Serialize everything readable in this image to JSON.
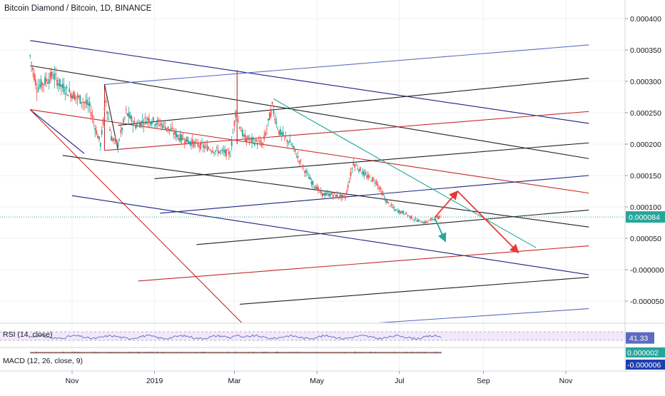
{
  "header": {
    "title": "Bitcoin Diamond / Bitcoin, 1D, BINANCE"
  },
  "chart_data": {
    "type": "candlestick",
    "title": "Bitcoin Diamond / Bitcoin, 1D, BINANCE",
    "x_axis": {
      "ticks": [
        {
          "label": "Nov",
          "date": "2018-11-01"
        },
        {
          "label": "2019",
          "date": "2019-01-01"
        },
        {
          "label": "Mar",
          "date": "2019-03-01"
        },
        {
          "label": "May",
          "date": "2019-05-01"
        },
        {
          "label": "Jul",
          "date": "2019-07-01"
        },
        {
          "label": "Sep",
          "date": "2019-09-01"
        },
        {
          "label": "Nov",
          "date": "2019-11-01"
        }
      ]
    },
    "y_axis": {
      "range": [
        -9e-05,
        0.00041
      ],
      "ticks": [
        {
          "label": "0.000400",
          "value": 0.0004
        },
        {
          "label": "0.000350",
          "value": 0.00035
        },
        {
          "label": "0.000300",
          "value": 0.0003
        },
        {
          "label": "0.000250",
          "value": 0.00025
        },
        {
          "label": "0.000200",
          "value": 0.0002
        },
        {
          "label": "0.000150",
          "value": 0.00015
        },
        {
          "label": "0.000100",
          "value": 0.0001
        },
        {
          "label": "0.000050",
          "value": 5e-05
        },
        {
          "label": "-0.000000",
          "value": 0
        },
        {
          "label": "-0.000050",
          "value": -5e-05
        }
      ]
    },
    "last_price": {
      "label": "0.000084",
      "value": 8.4e-05,
      "color": "#26a69a"
    },
    "price_path": [
      [
        "2018-10-01",
        0.00034
      ],
      [
        "2018-10-06",
        0.00029
      ],
      [
        "2018-10-12",
        0.0003
      ],
      [
        "2018-10-18",
        0.00031
      ],
      [
        "2018-10-25",
        0.00029
      ],
      [
        "2018-11-01",
        0.00028
      ],
      [
        "2018-11-08",
        0.00027
      ],
      [
        "2018-11-14",
        0.00026
      ],
      [
        "2018-11-19",
        0.00022
      ],
      [
        "2018-11-22",
        0.0002
      ],
      [
        "2018-11-26",
        0.00027
      ],
      [
        "2018-11-30",
        0.00021
      ],
      [
        "2018-12-05",
        0.0002
      ],
      [
        "2018-12-11",
        0.00025
      ],
      [
        "2018-12-18",
        0.00023
      ],
      [
        "2018-12-27",
        0.00024
      ],
      [
        "2019-01-08",
        0.00023
      ],
      [
        "2019-01-20",
        0.00021
      ],
      [
        "2019-02-01",
        0.0002
      ],
      [
        "2019-02-15",
        0.00019
      ],
      [
        "2019-02-26",
        0.000185
      ],
      [
        "2019-03-02",
        0.00025
      ],
      [
        "2019-03-08",
        0.00021
      ],
      [
        "2019-03-15",
        0.000205
      ],
      [
        "2019-03-22",
        0.0002
      ],
      [
        "2019-03-29",
        0.00026
      ],
      [
        "2019-04-03",
        0.00022
      ],
      [
        "2019-04-12",
        0.0002
      ],
      [
        "2019-04-19",
        0.00017
      ],
      [
        "2019-04-27",
        0.00014
      ],
      [
        "2019-05-05",
        0.00012
      ],
      [
        "2019-05-12",
        0.00012
      ],
      [
        "2019-05-22",
        0.000115
      ],
      [
        "2019-05-28",
        0.00017
      ],
      [
        "2019-06-06",
        0.00015
      ],
      [
        "2019-06-14",
        0.00014
      ],
      [
        "2019-06-21",
        0.00011
      ],
      [
        "2019-06-28",
        9.5e-05
      ],
      [
        "2019-07-05",
        9e-05
      ],
      [
        "2019-07-12",
        8e-05
      ],
      [
        "2019-07-20",
        7.5e-05
      ],
      [
        "2019-07-27",
        8.2e-05
      ],
      [
        "2019-08-01",
        8.4e-05
      ]
    ],
    "trendlines": [
      {
        "color": "#1a237e",
        "from": [
          "2018-10-01",
          0.000365
        ],
        "to": [
          "2019-11-18",
          0.000233
        ]
      },
      {
        "color": "#1a237e",
        "from": [
          "2018-10-01",
          0.000255
        ],
        "to": [
          "2018-11-10",
          0.000185
        ]
      },
      {
        "color": "#c62828",
        "from": [
          "2018-10-01",
          0.000255
        ],
        "to": [
          "2019-11-18",
          0.000122
        ]
      },
      {
        "color": "#c62828",
        "from": [
          "2018-10-01",
          0.000255
        ],
        "to": [
          "2019-03-08",
          -8.8e-05
        ]
      },
      {
        "color": "#212121",
        "from": [
          "2018-10-01",
          0.000325
        ],
        "to": [
          "2019-11-18",
          0.000177
        ]
      },
      {
        "color": "#5c6bc0",
        "from": [
          "2018-11-25",
          0.000295
        ],
        "to": [
          "2019-11-18",
          0.000358
        ]
      },
      {
        "color": "#c62828",
        "from": [
          "2018-11-25",
          0.000295
        ],
        "to": [
          "2018-11-25",
          0.00019
        ]
      },
      {
        "color": "#212121",
        "from": [
          "2018-11-25",
          0.000295
        ],
        "to": [
          "2018-12-05",
          0.00019
        ]
      },
      {
        "color": "#c62828",
        "from": [
          "2018-11-25",
          0.00019
        ],
        "to": [
          "2019-11-18",
          0.000252
        ]
      },
      {
        "color": "#212121",
        "from": [
          "2018-12-05",
          0.00023
        ],
        "to": [
          "2019-11-18",
          0.000305
        ]
      },
      {
        "color": "#212121",
        "from": [
          "2019-01-01",
          0.000145
        ],
        "to": [
          "2019-11-18",
          0.000202
        ]
      },
      {
        "color": "#212121",
        "from": [
          "2018-10-25",
          0.000182
        ],
        "to": [
          "2019-11-18",
          6.8e-05
        ]
      },
      {
        "color": "#1a237e",
        "from": [
          "2018-11-01",
          0.000118
        ],
        "to": [
          "2019-11-18",
          -8e-06
        ]
      },
      {
        "color": "#1a237e",
        "from": [
          "2019-01-05",
          9e-05
        ],
        "to": [
          "2019-11-18",
          0.00015
        ]
      },
      {
        "color": "#212121",
        "from": [
          "2019-02-01",
          4e-05
        ],
        "to": [
          "2019-11-18",
          9.5e-05
        ]
      },
      {
        "color": "#c62828",
        "from": [
          "2018-12-20",
          -1.8e-05
        ],
        "to": [
          "2019-11-18",
          3.8e-05
        ]
      },
      {
        "color": "#212121",
        "from": [
          "2019-03-05",
          -5.5e-05
        ],
        "to": [
          "2019-11-18",
          -1.2e-05
        ]
      },
      {
        "color": "#5c6bc0",
        "from": [
          "2019-05-10",
          -9e-05
        ],
        "to": [
          "2019-11-18",
          -6.2e-05
        ]
      },
      {
        "color": "#c62828",
        "from": [
          "2019-03-03",
          0.000318
        ],
        "to": [
          "2019-03-03",
          0.0002
        ]
      },
      {
        "color": "#26a69a",
        "from": [
          "2019-03-30",
          0.000272
        ],
        "to": [
          "2019-10-10",
          3.5e-05
        ]
      }
    ],
    "arrows": [
      {
        "color": "#e53935",
        "from": [
          "2019-07-27",
          8.3e-05
        ],
        "to": [
          "2019-08-13",
          0.000125
        ]
      },
      {
        "color": "#e53935",
        "from": [
          "2019-08-13",
          0.000125
        ],
        "to": [
          "2019-09-27",
          2.7e-05
        ]
      },
      {
        "color": "#26a69a",
        "from": [
          "2019-07-27",
          8.3e-05
        ],
        "to": [
          "2019-08-04",
          4.5e-05
        ]
      }
    ],
    "indicators": [
      {
        "name": "RSI (14, close)",
        "value_label": "41.33",
        "value": 41.33,
        "color": "#5c6bc0",
        "band": [
          30,
          70
        ]
      },
      {
        "name": "MACD (12, 26, close, 9)",
        "value_labels": [
          {
            "label": "0.000002",
            "value": 2e-06,
            "color": "#26a69a"
          },
          {
            "label": "-0.000006",
            "value": -6e-06,
            "color": "#1e40af"
          }
        ]
      }
    ]
  }
}
